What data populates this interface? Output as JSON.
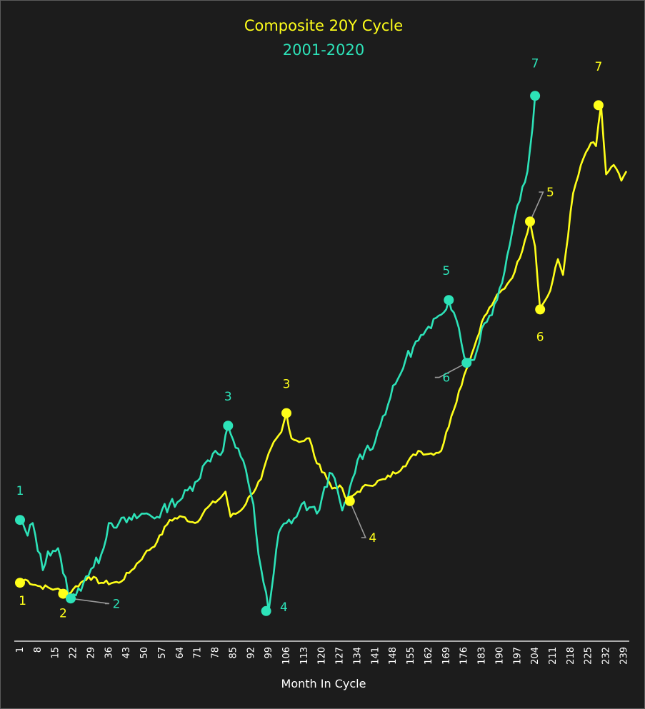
{
  "chart_data": {
    "type": "line",
    "title": "Composite 20Y Cycle",
    "subtitle": "2001-2020",
    "xlabel": "Month In Cycle",
    "ylabel": "",
    "xlim": [
      1,
      240
    ],
    "x_ticks": [
      1,
      8,
      15,
      22,
      29,
      36,
      43,
      50,
      57,
      64,
      71,
      78,
      85,
      92,
      99,
      106,
      113,
      120,
      127,
      134,
      141,
      148,
      155,
      162,
      169,
      176,
      183,
      190,
      197,
      204,
      211,
      218,
      225,
      232,
      239
    ],
    "y_axis_visible": false,
    "grid": false,
    "colors": {
      "background": "#1c1c1c",
      "composite": "#ffff1a",
      "period": "#2de2b8",
      "leader": "#9a9a9a",
      "axis": "#ffffff"
    },
    "series": [
      {
        "name": "Composite 20Y Cycle",
        "color": "#ffff1a",
        "x_end": 240,
        "anchors": [
          [
            1,
            17
          ],
          [
            3,
            18
          ],
          [
            8,
            16
          ],
          [
            15,
            15
          ],
          [
            20,
            13.5
          ],
          [
            22,
            15
          ],
          [
            28,
            19
          ],
          [
            33,
            17
          ],
          [
            40,
            17
          ],
          [
            45,
            21
          ],
          [
            50,
            26
          ],
          [
            55,
            30
          ],
          [
            60,
            37
          ],
          [
            65,
            38
          ],
          [
            70,
            36
          ],
          [
            75,
            41
          ],
          [
            80,
            44
          ],
          [
            82,
            46
          ],
          [
            84,
            38
          ],
          [
            88,
            40
          ],
          [
            92,
            45
          ],
          [
            96,
            50
          ],
          [
            100,
            60
          ],
          [
            104,
            65
          ],
          [
            106,
            71
          ],
          [
            108,
            63
          ],
          [
            112,
            62
          ],
          [
            115,
            63
          ],
          [
            118,
            55
          ],
          [
            121,
            52
          ],
          [
            124,
            47
          ],
          [
            127,
            48
          ],
          [
            130,
            43
          ],
          [
            134,
            46
          ],
          [
            138,
            48
          ],
          [
            145,
            50
          ],
          [
            152,
            54
          ],
          [
            158,
            59
          ],
          [
            162,
            58
          ],
          [
            167,
            59
          ],
          [
            171,
            70
          ],
          [
            176,
            83
          ],
          [
            180,
            92
          ],
          [
            183,
            100
          ],
          [
            188,
            107
          ],
          [
            193,
            112
          ],
          [
            196,
            116
          ],
          [
            200,
            126
          ],
          [
            202,
            132
          ],
          [
            204,
            124
          ],
          [
            206,
            104
          ],
          [
            210,
            110
          ],
          [
            213,
            120
          ],
          [
            215,
            115
          ],
          [
            219,
            141
          ],
          [
            223,
            152
          ],
          [
            226,
            157
          ],
          [
            228,
            156
          ],
          [
            230,
            169
          ],
          [
            232,
            147
          ],
          [
            235,
            150
          ],
          [
            238,
            145
          ],
          [
            240,
            148
          ]
        ],
        "noise": 0.8,
        "seed": 7
      },
      {
        "name": "2001-2020",
        "color": "#2de2b8",
        "x_end": 204,
        "anchors": [
          [
            1,
            37
          ],
          [
            4,
            32
          ],
          [
            6,
            36
          ],
          [
            10,
            21
          ],
          [
            12,
            27
          ],
          [
            16,
            28
          ],
          [
            18,
            20
          ],
          [
            21,
            12
          ],
          [
            23,
            13
          ],
          [
            27,
            19
          ],
          [
            30,
            22
          ],
          [
            33,
            26
          ],
          [
            36,
            36
          ],
          [
            40,
            36
          ],
          [
            45,
            37
          ],
          [
            50,
            39
          ],
          [
            55,
            38
          ],
          [
            60,
            42
          ],
          [
            65,
            44
          ],
          [
            70,
            49
          ],
          [
            75,
            56
          ],
          [
            78,
            59
          ],
          [
            81,
            59
          ],
          [
            83,
            67
          ],
          [
            86,
            60
          ],
          [
            90,
            53
          ],
          [
            93,
            42
          ],
          [
            95,
            26
          ],
          [
            97,
            17
          ],
          [
            99,
            8
          ],
          [
            101,
            20
          ],
          [
            103,
            33
          ],
          [
            106,
            36
          ],
          [
            110,
            38
          ],
          [
            112,
            42
          ],
          [
            115,
            41
          ],
          [
            118,
            39
          ],
          [
            120,
            44
          ],
          [
            123,
            52
          ],
          [
            126,
            47
          ],
          [
            128,
            40
          ],
          [
            130,
            43
          ],
          [
            134,
            56
          ],
          [
            137,
            59
          ],
          [
            141,
            62
          ],
          [
            144,
            70
          ],
          [
            147,
            76
          ],
          [
            150,
            82
          ],
          [
            153,
            88
          ],
          [
            156,
            92
          ],
          [
            160,
            96
          ],
          [
            163,
            98
          ],
          [
            166,
            102
          ],
          [
            170,
            107
          ],
          [
            172,
            103
          ],
          [
            174,
            98
          ],
          [
            177,
            87
          ],
          [
            180,
            88
          ],
          [
            183,
            98
          ],
          [
            186,
            102
          ],
          [
            189,
            107
          ],
          [
            193,
            121
          ],
          [
            197,
            137
          ],
          [
            201,
            148
          ],
          [
            203,
            162
          ],
          [
            204,
            172
          ]
        ],
        "noise": 1.8,
        "seed": 13
      }
    ],
    "annotations": [
      {
        "series": 0,
        "text": "1",
        "x": 1,
        "y": 17,
        "lx": 2,
        "ly": 10,
        "leader": false
      },
      {
        "series": 0,
        "text": "2",
        "x": 18,
        "y": 13.5,
        "lx": 18,
        "ly": 6,
        "leader": false
      },
      {
        "series": 0,
        "text": "3",
        "x": 106,
        "y": 71,
        "lx": 106,
        "ly": 79,
        "leader": false
      },
      {
        "series": 0,
        "text": "4",
        "x": 131,
        "y": 43,
        "lx": 140,
        "ly": 30,
        "leader": true
      },
      {
        "series": 0,
        "text": "5",
        "x": 202,
        "y": 132,
        "lx": 210,
        "ly": 140,
        "leader": true
      },
      {
        "series": 0,
        "text": "6",
        "x": 206,
        "y": 104,
        "lx": 206,
        "ly": 94,
        "leader": false
      },
      {
        "series": 0,
        "text": "7",
        "x": 229,
        "y": 169,
        "lx": 229,
        "ly": 180,
        "leader": false
      },
      {
        "series": 1,
        "text": "1",
        "x": 1,
        "y": 37,
        "lx": 1,
        "ly": 45,
        "leader": false
      },
      {
        "series": 1,
        "text": "2",
        "x": 21,
        "y": 12,
        "lx": 39,
        "ly": 9,
        "leader": true
      },
      {
        "series": 1,
        "text": "3",
        "x": 83,
        "y": 67,
        "lx": 83,
        "ly": 75,
        "leader": false
      },
      {
        "series": 1,
        "text": "4",
        "x": 98,
        "y": 8,
        "lx": 105,
        "ly": 8,
        "leader": false
      },
      {
        "series": 1,
        "text": "5",
        "x": 170,
        "y": 107,
        "lx": 169,
        "ly": 115,
        "leader": false
      },
      {
        "series": 1,
        "text": "6",
        "x": 177,
        "y": 87,
        "lx": 169,
        "ly": 81,
        "leader": true
      },
      {
        "series": 1,
        "text": "7",
        "x": 204,
        "y": 172,
        "lx": 204,
        "ly": 181,
        "leader": false
      }
    ]
  }
}
